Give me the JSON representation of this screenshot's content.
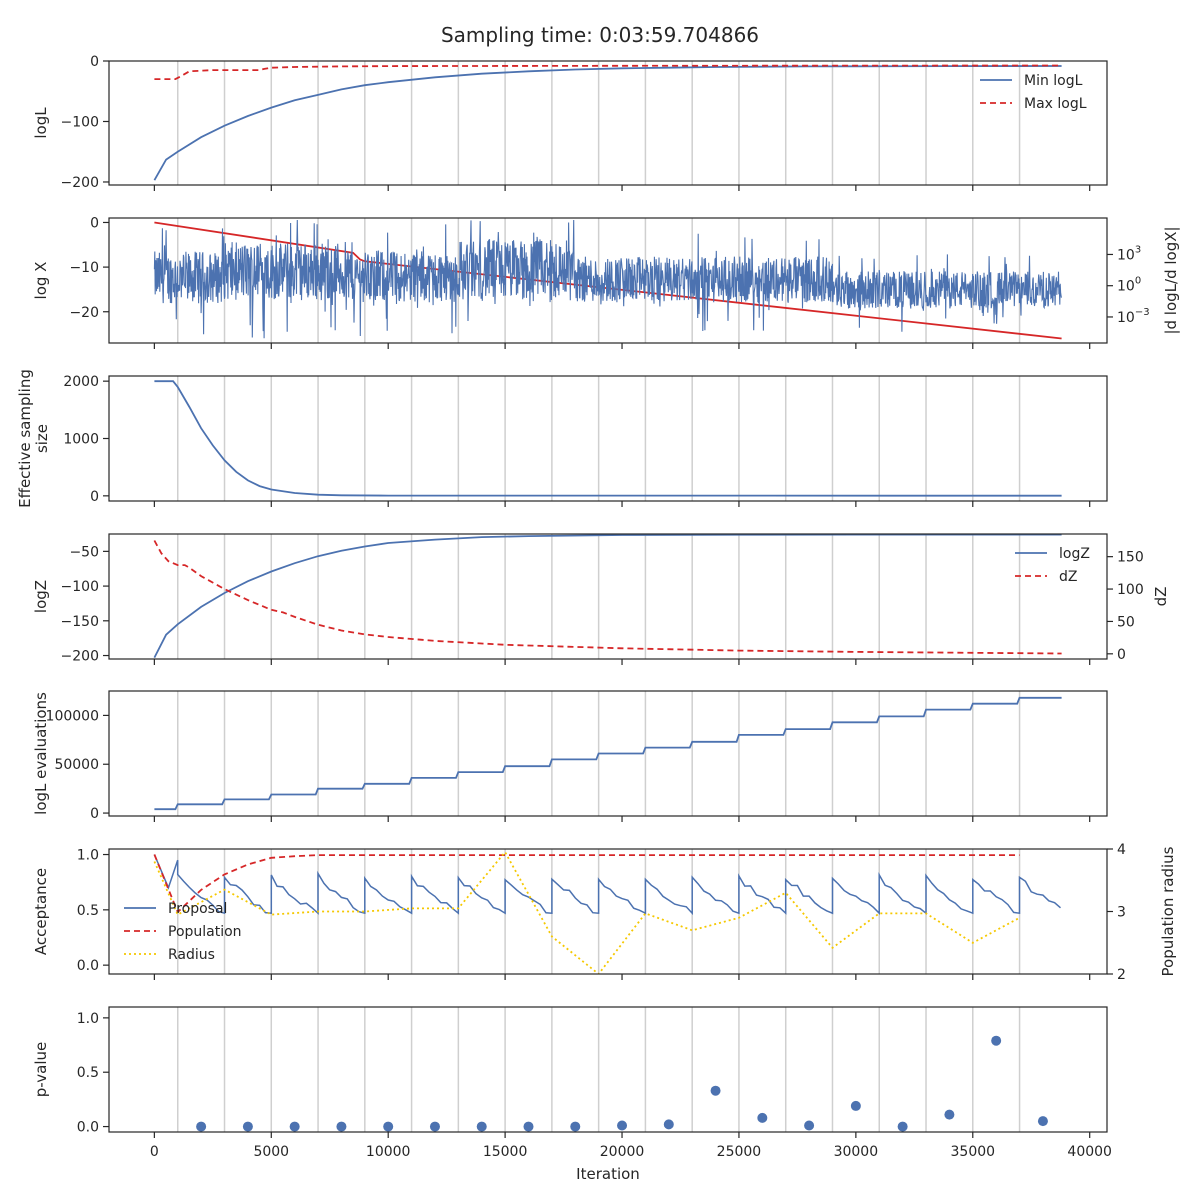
{
  "title": "Sampling time: 0:03:59.704866",
  "colors": {
    "blue": "#4c72b0",
    "red": "#d62728",
    "yellow": "#f5c800",
    "grid": "#cfcfcf",
    "axis": "#262626"
  },
  "chart_data": [
    {
      "id": "logl",
      "type": "line",
      "ylabel": "logL",
      "xlim": [
        -1940,
        40740
      ],
      "ylim": [
        -205,
        0
      ],
      "yticks": [
        0,
        -100,
        -200
      ],
      "ytick_labels": [
        "0",
        "−100",
        "−200"
      ],
      "legend": {
        "position": "right",
        "entries": [
          "Min logL",
          "Max logL"
        ]
      },
      "series": [
        {
          "name": "Min logL",
          "style": "solid",
          "color": "#4c72b0",
          "x": [
            0,
            500,
            1000,
            2000,
            3000,
            4000,
            5000,
            6000,
            7000,
            8000,
            9000,
            10000,
            12000,
            14000,
            16000,
            18000,
            20000,
            22000,
            24000,
            26000,
            28000,
            30000,
            34000,
            38800
          ],
          "y": [
            -197,
            -163,
            -150,
            -126,
            -107,
            -91,
            -77,
            -65,
            -56,
            -47,
            -40,
            -35,
            -27,
            -21,
            -17,
            -14,
            -12,
            -11,
            -10,
            -9.5,
            -9,
            -8.8,
            -8.5,
            -8.2
          ]
        },
        {
          "name": "Max logL",
          "style": "dashed",
          "color": "#d62728",
          "x": [
            0,
            900,
            1100,
            1500,
            2000,
            2500,
            4500,
            4700,
            5000,
            6000,
            8000,
            10000,
            20000,
            38800
          ],
          "y": [
            -30,
            -30,
            -26,
            -17,
            -16,
            -15,
            -15,
            -13,
            -11,
            -10,
            -9,
            -8.5,
            -8,
            -7.5
          ]
        }
      ]
    },
    {
      "id": "logx",
      "type": "line",
      "ylabel": "log X",
      "xlim": [
        -1940,
        40740
      ],
      "ylim": [
        -27,
        1
      ],
      "yticks": [
        0,
        -10,
        -20
      ],
      "ytick_labels": [
        "0",
        "−10",
        "−20"
      ],
      "y2label": "|d logL/d logX|",
      "y2scale": "log",
      "y2ticks": [
        3,
        0,
        -3
      ],
      "y2tick_labels": [
        "10",
        "10",
        "10"
      ],
      "y2tick_exponents": [
        "3",
        "0",
        "−3"
      ],
      "y2lim": [
        -5.5,
        6.5
      ],
      "series": [
        {
          "name": "",
          "axis": "left",
          "style": "solid",
          "color": "#d62728",
          "x": [
            0,
            8500,
            8600,
            8800,
            9000,
            38800
          ],
          "y": [
            0,
            -6.8,
            -7.3,
            -8.3,
            -8.7,
            -26
          ]
        },
        {
          "name": "",
          "axis": "right",
          "style": "noisy",
          "color": "#4c72b0",
          "segments": [
            {
              "x0": 0,
              "x1": 3000,
              "center": 0.8,
              "amp": 2.5
            },
            {
              "x0": 3000,
              "x1": 8500,
              "center": 1.4,
              "amp": 2.8
            },
            {
              "x0": 8500,
              "x1": 13000,
              "center": 0.9,
              "amp": 2.5
            },
            {
              "x0": 13000,
              "x1": 18000,
              "center": 1.5,
              "amp": 3.0
            },
            {
              "x0": 18000,
              "x1": 29000,
              "center": 0.6,
              "amp": 2.2
            },
            {
              "x0": 29000,
              "x1": 38800,
              "center": -0.4,
              "amp": 1.8
            }
          ]
        }
      ]
    },
    {
      "id": "ess",
      "type": "line",
      "ylabel": "Effective sampling size",
      "ylabel_lines": [
        "Effective sampling",
        "size"
      ],
      "xlim": [
        -1940,
        40740
      ],
      "ylim": [
        -90,
        2090
      ],
      "yticks": [
        2000,
        1000,
        0
      ],
      "ytick_labels": [
        "2000",
        "1000",
        "0"
      ],
      "series": [
        {
          "name": "",
          "style": "solid",
          "color": "#4c72b0",
          "x": [
            0,
            800,
            1000,
            1500,
            2000,
            2500,
            3000,
            3500,
            4000,
            4500,
            5000,
            6000,
            7000,
            8000,
            10000,
            38800
          ],
          "y": [
            2000,
            2000,
            1900,
            1550,
            1180,
            880,
            620,
            420,
            270,
            170,
            110,
            50,
            20,
            10,
            5,
            3
          ]
        }
      ]
    },
    {
      "id": "logz",
      "type": "line",
      "ylabel": "logZ",
      "y2label": "dZ",
      "xlim": [
        -1940,
        40740
      ],
      "ylim": [
        -205,
        -25
      ],
      "yticks": [
        -50,
        -100,
        -150,
        -200
      ],
      "ytick_labels": [
        "−50",
        "−100",
        "−150",
        "−200"
      ],
      "y2lim": [
        -8,
        185
      ],
      "y2ticks": [
        150,
        100,
        50,
        0
      ],
      "y2tick_labels": [
        "150",
        "100",
        "50",
        "0"
      ],
      "legend": {
        "position": "top-right",
        "entries": [
          "logZ",
          "dZ"
        ]
      },
      "series": [
        {
          "name": "logZ",
          "axis": "left",
          "style": "solid",
          "color": "#4c72b0",
          "x": [
            0,
            500,
            1000,
            2000,
            3000,
            4000,
            5000,
            6000,
            7000,
            8000,
            9000,
            10000,
            12000,
            14000,
            16000,
            20000,
            25000,
            30000,
            38800
          ],
          "y": [
            -203,
            -170,
            -155,
            -130,
            -110,
            -93,
            -79,
            -67,
            -57,
            -49,
            -43,
            -38,
            -33,
            -29.5,
            -28,
            -26.5,
            -26,
            -25.8,
            -25.8
          ]
        },
        {
          "name": "dZ",
          "axis": "right",
          "style": "dashed",
          "color": "#d62728",
          "x": [
            0,
            300,
            600,
            1000,
            1300,
            1500,
            2000,
            3000,
            4000,
            5000,
            5500,
            6000,
            7000,
            8000,
            9000,
            10000,
            12000,
            15000,
            20000,
            25000,
            30000,
            38800
          ],
          "y": [
            175,
            155,
            143,
            137,
            137,
            133,
            120,
            100,
            83,
            68,
            64,
            57,
            45,
            36,
            30,
            26,
            20,
            14,
            8.5,
            5,
            3,
            0.5
          ]
        }
      ]
    },
    {
      "id": "evals",
      "type": "line",
      "ylabel": "logL evaluations",
      "xlim": [
        -1940,
        40740
      ],
      "ylim": [
        -3000,
        125000
      ],
      "yticks": [
        100000,
        50000,
        0
      ],
      "ytick_labels": [
        "100000",
        "50000",
        "0"
      ],
      "series": [
        {
          "name": "",
          "style": "step",
          "color": "#4c72b0",
          "x": [
            0,
            900,
            1000,
            2900,
            3000,
            4900,
            5000,
            6900,
            7000,
            8900,
            9000,
            10900,
            11000,
            12900,
            13000,
            14900,
            15000,
            16900,
            17000,
            18900,
            19000,
            20900,
            21000,
            22900,
            23000,
            24900,
            25000,
            26900,
            27000,
            28900,
            29000,
            30900,
            31000,
            32900,
            33000,
            34900,
            35000,
            36900,
            37000,
            38800
          ],
          "y": [
            4000,
            4000,
            9000,
            9000,
            14000,
            14000,
            19000,
            19000,
            25000,
            25000,
            30000,
            30000,
            36000,
            36000,
            42000,
            42000,
            48000,
            48000,
            55000,
            55000,
            61000,
            61000,
            67000,
            67000,
            73000,
            73000,
            80000,
            80000,
            86000,
            86000,
            93000,
            93000,
            99000,
            99000,
            106000,
            106000,
            112000,
            112000,
            118000,
            118000
          ]
        }
      ]
    },
    {
      "id": "acceptance",
      "type": "line",
      "ylabel": "Acceptance",
      "y2label": "Population radius",
      "xlim": [
        -1940,
        40740
      ],
      "ylim": [
        -0.08,
        1.05
      ],
      "yticks": [
        1.0,
        0.5,
        0.0
      ],
      "ytick_labels": [
        "1.0",
        "0.5",
        "0.0"
      ],
      "y2lim": [
        2,
        4
      ],
      "y2ticks": [
        4,
        3,
        2
      ],
      "y2tick_labels": [
        "4",
        "3",
        "2"
      ],
      "legend": {
        "position": "left",
        "entries": [
          "Proposal",
          "Population",
          "Radius"
        ]
      },
      "series": [
        {
          "name": "Proposal",
          "axis": "left",
          "style": "sawtooth",
          "color": "#4c72b0",
          "x_start": 0,
          "x_end": 38800,
          "period": 2000,
          "high": 0.8,
          "low": 0.47
        },
        {
          "name": "Population",
          "axis": "left",
          "style": "dashed",
          "color": "#d62728",
          "x": [
            0,
            1000,
            2000,
            3000,
            4000,
            5000,
            6000,
            7000,
            8000,
            37000
          ],
          "y": [
            1.0,
            0.48,
            0.68,
            0.82,
            0.91,
            0.97,
            0.985,
            0.995,
            0.995,
            0.995
          ]
        },
        {
          "name": "Radius",
          "axis": "right",
          "style": "dotted",
          "color": "#f5c800",
          "x": [
            0,
            1000,
            3000,
            5000,
            7000,
            9000,
            11000,
            13000,
            15000,
            17000,
            19000,
            21000,
            23000,
            25000,
            27000,
            29000,
            31000,
            33000,
            35000,
            37000
          ],
          "y": [
            3.8,
            2.95,
            3.35,
            2.95,
            3.0,
            3.0,
            3.05,
            3.05,
            3.95,
            2.6,
            2.0,
            2.97,
            2.7,
            2.9,
            3.3,
            2.42,
            2.97,
            2.97,
            2.5,
            2.9
          ]
        }
      ]
    },
    {
      "id": "pvalue",
      "type": "scatter",
      "ylabel": "p-value",
      "xlabel": "Iteration",
      "xlim": [
        -1940,
        40740
      ],
      "ylim": [
        -0.05,
        1.1
      ],
      "yticks": [
        1.0,
        0.5,
        0.0
      ],
      "ytick_labels": [
        "1.0",
        "0.5",
        "0.0"
      ],
      "xticks": [
        0,
        5000,
        10000,
        15000,
        20000,
        25000,
        30000,
        35000,
        40000
      ],
      "xtick_labels": [
        "0",
        "5000",
        "10000",
        "15000",
        "20000",
        "25000",
        "30000",
        "35000",
        "40000"
      ],
      "series": [
        {
          "name": "",
          "color": "#4c72b0",
          "x": [
            2000,
            4000,
            6000,
            8000,
            10000,
            12000,
            14000,
            16000,
            18000,
            20000,
            22000,
            24000,
            26000,
            28000,
            30000,
            32000,
            34000,
            36000,
            38000
          ],
          "y": [
            0.0,
            0.0,
            0.0,
            0.0,
            0.0,
            0.0,
            0.0,
            0.0,
            0.0,
            0.01,
            0.02,
            0.33,
            0.08,
            0.01,
            0.19,
            0.0,
            0.11,
            0.79,
            0.05
          ]
        }
      ]
    }
  ],
  "grid": {
    "vertical_lines_x": [
      1000,
      3000,
      5000,
      7000,
      9000,
      11000,
      13000,
      15000,
      17000,
      19000,
      21000,
      23000,
      25000,
      27000,
      29000,
      31000,
      33000,
      35000,
      37000
    ]
  }
}
